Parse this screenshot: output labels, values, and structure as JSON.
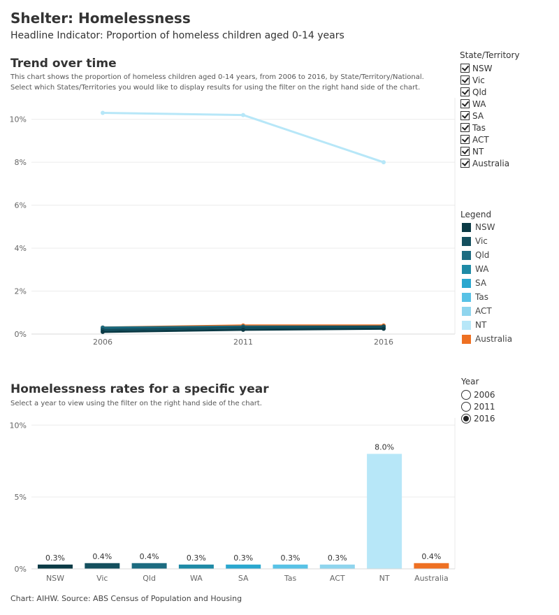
{
  "header": {
    "title": "Shelter: Homelessness",
    "subtitle": "Headline Indicator: Proportion of homeless children aged 0-14 years"
  },
  "trend": {
    "title": "Trend over time",
    "desc_line1": "This chart shows the proportion of homeless children aged 0-14 years, from 2006 to 2016, by State/Territory/National.",
    "desc_line2": "Select which States/Territories you would like to display results for using the filter on the right hand side of the chart."
  },
  "state_filter": {
    "title": "State/Territory",
    "items": [
      "NSW",
      "Vic",
      "Qld",
      "WA",
      "SA",
      "Tas",
      "ACT",
      "NT",
      "Australia"
    ]
  },
  "legend": {
    "title": "Legend",
    "items": [
      {
        "label": "NSW",
        "color": "#0b3a45"
      },
      {
        "label": "Vic",
        "color": "#144f5e"
      },
      {
        "label": "Qld",
        "color": "#1c6b80"
      },
      {
        "label": "WA",
        "color": "#1e8aa6"
      },
      {
        "label": "SA",
        "color": "#2aa7cf"
      },
      {
        "label": "Tas",
        "color": "#58c2e6"
      },
      {
        "label": "ACT",
        "color": "#8fd5ee"
      },
      {
        "label": "NT",
        "color": "#b7e7f8"
      },
      {
        "label": "Australia",
        "color": "#ee7022"
      }
    ]
  },
  "bar_section": {
    "title": "Homelessness rates for a specific year",
    "desc": "Select a year to view using the filter on the right hand side of the chart."
  },
  "year_filter": {
    "title": "Year",
    "options": [
      "2006",
      "2011",
      "2016"
    ],
    "selected": "2016"
  },
  "footer": {
    "source": "Chart: AIHW. Source: ABS Census of Population and Housing"
  },
  "chart_data": [
    {
      "type": "line",
      "x": [
        "2006",
        "2011",
        "2016"
      ],
      "ylim": [
        0,
        11
      ],
      "yticks": [
        0,
        2,
        4,
        6,
        8,
        10
      ],
      "ytick_labels": [
        "0%",
        "2%",
        "4%",
        "6%",
        "8%",
        "10%"
      ],
      "grid": true,
      "series": [
        {
          "name": "NSW",
          "color": "#0b3a45",
          "values": [
            0.1,
            0.2,
            0.25
          ]
        },
        {
          "name": "Vic",
          "color": "#144f5e",
          "values": [
            0.2,
            0.3,
            0.35
          ]
        },
        {
          "name": "Qld",
          "color": "#1c6b80",
          "values": [
            0.3,
            0.35,
            0.35
          ]
        },
        {
          "name": "WA",
          "color": "#1e8aa6",
          "values": [
            0.25,
            0.3,
            0.3
          ]
        },
        {
          "name": "SA",
          "color": "#2aa7cf",
          "values": [
            0.2,
            0.25,
            0.3
          ]
        },
        {
          "name": "Tas",
          "color": "#58c2e6",
          "values": [
            0.15,
            0.25,
            0.3
          ]
        },
        {
          "name": "ACT",
          "color": "#8fd5ee",
          "values": [
            0.2,
            0.3,
            0.3
          ]
        },
        {
          "name": "NT",
          "color": "#b7e7f8",
          "values": [
            10.3,
            10.2,
            8.0
          ]
        },
        {
          "name": "Australia",
          "color": "#ee7022",
          "values": [
            0.3,
            0.4,
            0.4
          ]
        }
      ]
    },
    {
      "type": "bar",
      "categories": [
        "NSW",
        "Vic",
        "Qld",
        "WA",
        "SA",
        "Tas",
        "ACT",
        "NT",
        "Australia"
      ],
      "values": [
        0.3,
        0.4,
        0.4,
        0.3,
        0.3,
        0.3,
        0.3,
        8.0,
        0.4
      ],
      "labels": [
        "0.3%",
        "0.4%",
        "0.4%",
        "0.3%",
        "0.3%",
        "0.3%",
        "0.3%",
        "8.0%",
        "0.4%"
      ],
      "colors": [
        "#0b3a45",
        "#144f5e",
        "#1c6b80",
        "#1e8aa6",
        "#2aa7cf",
        "#58c2e6",
        "#8fd5ee",
        "#b7e7f8",
        "#ee7022"
      ],
      "ylim": [
        0,
        10.5
      ],
      "yticks": [
        0,
        5,
        10
      ],
      "ytick_labels": [
        "0%",
        "5%",
        "10%"
      ],
      "grid": true
    }
  ]
}
